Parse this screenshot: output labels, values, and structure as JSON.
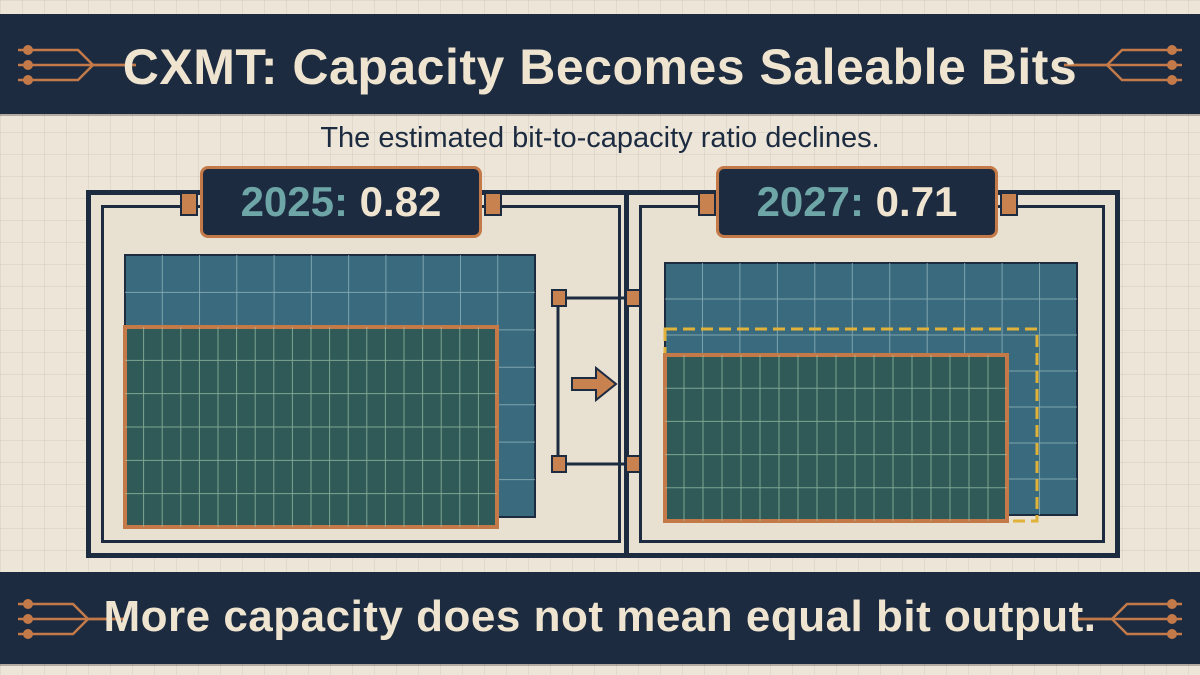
{
  "header": {
    "title": "CXMT: Capacity Becomes Saleable Bits"
  },
  "subtitle": "The estimated bit-to-capacity ratio declines.",
  "panels": {
    "left": {
      "year": "2025:",
      "ratio": "0.82"
    },
    "right": {
      "year": "2027:",
      "ratio": "0.71"
    }
  },
  "footer": {
    "caption": "More capacity does not mean equal bit output."
  },
  "colors": {
    "navy": "#1c2b40",
    "teal": "#3a6a7e",
    "copper": "#c47a48",
    "gold": "#e0b23a",
    "paper": "#ece5d8"
  },
  "icons": [
    "circuit-trace-icon",
    "arrow-right-icon"
  ]
}
